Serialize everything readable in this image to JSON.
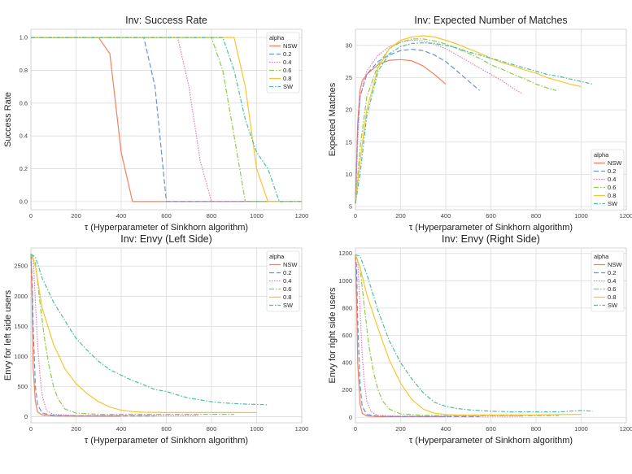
{
  "chart_data": [
    {
      "type": "line",
      "title": "Inv: Success Rate",
      "xlabel": "τ (Hyperparameter of Sinkhorn algorithm)",
      "ylabel": "Success Rate",
      "xlim": [
        0,
        1200
      ],
      "ylim": [
        -0.05,
        1.05
      ],
      "xticks": [
        0,
        200,
        400,
        600,
        800,
        1000,
        1200
      ],
      "yticks": [
        0.0,
        0.2,
        0.4,
        0.6,
        0.8,
        1.0
      ],
      "ytick_labels": [
        "0.0",
        "0.2",
        "0.4",
        "0.6",
        "0.8",
        "1.0"
      ],
      "grid": true,
      "legend": {
        "title": "alpha",
        "position": "top-right"
      },
      "series": [
        {
          "name": "NSW",
          "color": "#f4805d",
          "dash": "solid",
          "x": [
            0,
            300,
            350,
            400,
            450,
            1200
          ],
          "y": [
            1,
            1,
            0.9,
            0.3,
            0,
            0
          ]
        },
        {
          "name": "0.2",
          "color": "#6b8fd6",
          "dash": "6,3",
          "x": [
            0,
            500,
            550,
            600,
            1200
          ],
          "y": [
            1,
            1,
            0.7,
            0,
            0
          ]
        },
        {
          "name": "0.4",
          "color": "#e87ab8",
          "dash": "1.5,1.5",
          "x": [
            0,
            650,
            700,
            750,
            800,
            1200
          ],
          "y": [
            1,
            1,
            0.7,
            0.25,
            0,
            0
          ]
        },
        {
          "name": "0.6",
          "color": "#8fcc4a",
          "dash": "6,2,1.5,2",
          "x": [
            0,
            800,
            850,
            900,
            950,
            1200
          ],
          "y": [
            1,
            1,
            0.8,
            0.4,
            0,
            0
          ]
        },
        {
          "name": "0.8",
          "color": "#f7c531",
          "dash": "solid",
          "x": [
            0,
            900,
            950,
            1000,
            1050,
            1200
          ],
          "y": [
            1,
            1,
            0.7,
            0.2,
            0,
            0
          ]
        },
        {
          "name": "SW",
          "color": "#48bfa4",
          "dash": "5,2,1.5,2",
          "x": [
            0,
            850,
            900,
            950,
            1000,
            1050,
            1100,
            1200
          ],
          "y": [
            1,
            1,
            0.8,
            0.5,
            0.3,
            0.2,
            0,
            0
          ]
        }
      ]
    },
    {
      "type": "line",
      "title": "Inv: Expected Number of Matches",
      "xlabel": "τ (Hyperparameter of Sinkhorn algorithm)",
      "ylabel": "Expected Matches",
      "xlim": [
        0,
        1200
      ],
      "ylim": [
        4.5,
        32.5
      ],
      "xticks": [
        0,
        200,
        400,
        600,
        800,
        1000,
        1200
      ],
      "yticks": [
        5,
        10,
        15,
        20,
        25,
        30
      ],
      "ytick_labels": [
        "5",
        "10",
        "15",
        "20",
        "25",
        "30"
      ],
      "grid": true,
      "legend": {
        "title": "alpha",
        "position": "bottom-right"
      },
      "series": [
        {
          "name": "NSW",
          "color": "#f4805d",
          "dash": "solid",
          "x": [
            0,
            10,
            20,
            30,
            50,
            100,
            150,
            200,
            250,
            300,
            350,
            400
          ],
          "y": [
            5.5,
            18,
            23,
            24.5,
            25.5,
            27,
            27.7,
            27.8,
            27.6,
            26.8,
            25.5,
            24
          ]
        },
        {
          "name": "0.2",
          "color": "#6b8fd6",
          "dash": "6,3",
          "x": [
            0,
            10,
            20,
            50,
            100,
            150,
            200,
            250,
            300,
            350,
            400,
            450,
            500,
            550
          ],
          "y": [
            5.5,
            17,
            22,
            25.5,
            27.5,
            28.5,
            29.2,
            29.4,
            29.2,
            28.5,
            27.5,
            26,
            24.5,
            23
          ]
        },
        {
          "name": "0.4",
          "color": "#e87ab8",
          "dash": "1.5,1.5",
          "x": [
            0,
            10,
            20,
            50,
            100,
            150,
            200,
            250,
            300,
            350,
            400,
            450,
            500,
            550,
            600,
            650,
            700,
            740
          ],
          "y": [
            5.5,
            15,
            22,
            26,
            28.5,
            29.8,
            30.5,
            30.8,
            30.7,
            30.2,
            29.5,
            28.5,
            27.5,
            26.5,
            25.5,
            24.5,
            23.3,
            22.5
          ]
        },
        {
          "name": "0.6",
          "color": "#8fcc4a",
          "dash": "6,2,1.5,2",
          "x": [
            0,
            20,
            50,
            100,
            150,
            200,
            250,
            300,
            350,
            400,
            450,
            500,
            550,
            600,
            650,
            700,
            750,
            800,
            850,
            890
          ],
          "y": [
            5.5,
            14,
            22,
            27,
            29.5,
            30.5,
            31,
            31,
            30.7,
            30.2,
            29.5,
            28.8,
            28,
            27,
            26.3,
            25.5,
            24.8,
            24,
            23.4,
            23
          ]
        },
        {
          "name": "0.8",
          "color": "#f7c531",
          "dash": "solid",
          "x": [
            0,
            20,
            50,
            100,
            150,
            200,
            250,
            300,
            350,
            400,
            450,
            500,
            550,
            600,
            650,
            700,
            750,
            800,
            850,
            900,
            950,
            1000
          ],
          "y": [
            5.5,
            12,
            20,
            26.5,
            29.5,
            30.8,
            31.3,
            31.5,
            31.3,
            30.8,
            30.2,
            29.5,
            28.8,
            28,
            27.3,
            26.8,
            26.2,
            25.7,
            25,
            24.5,
            24,
            23.6
          ]
        },
        {
          "name": "SW",
          "color": "#48bfa4",
          "dash": "5,2,1.5,2",
          "x": [
            0,
            20,
            50,
            100,
            150,
            200,
            250,
            300,
            350,
            400,
            450,
            500,
            550,
            600,
            650,
            700,
            750,
            800,
            850,
            900,
            950,
            1000,
            1050
          ],
          "y": [
            5.5,
            10,
            19,
            26,
            28.7,
            29.8,
            30.3,
            30.4,
            30.3,
            30,
            29.6,
            29,
            28.5,
            28,
            27.5,
            27,
            26.5,
            26,
            25.5,
            25.2,
            24.8,
            24.4,
            24
          ]
        }
      ]
    },
    {
      "type": "line",
      "title": "Inv: Envy (Left Side)",
      "xlabel": "τ (Hyperparameter of Sinkhorn algorithm)",
      "ylabel": "Envy for left side users",
      "xlim": [
        0,
        1200
      ],
      "ylim": [
        -100,
        2800
      ],
      "xticks": [
        0,
        200,
        400,
        600,
        800,
        1000,
        1200
      ],
      "yticks": [
        0,
        500,
        1000,
        1500,
        2000,
        2500
      ],
      "ytick_labels": [
        "0",
        "500",
        "1000",
        "1500",
        "2000",
        "2500"
      ],
      "grid": true,
      "legend": {
        "title": "alpha",
        "position": "top-right"
      },
      "series": [
        {
          "name": "NSW",
          "color": "#f4805d",
          "dash": "solid",
          "x": [
            0,
            5,
            10,
            20,
            30,
            50,
            100,
            200,
            300,
            400
          ],
          "y": [
            2700,
            2000,
            800,
            250,
            80,
            30,
            15,
            10,
            10,
            10
          ]
        },
        {
          "name": "0.2",
          "color": "#6b8fd6",
          "dash": "6,3",
          "x": [
            0,
            5,
            10,
            20,
            30,
            50,
            100,
            200,
            300,
            400,
            500,
            550
          ],
          "y": [
            2700,
            2300,
            1500,
            500,
            200,
            60,
            20,
            15,
            15,
            15,
            15,
            15
          ]
        },
        {
          "name": "0.4",
          "color": "#e87ab8",
          "dash": "1.5,1.5",
          "x": [
            0,
            10,
            20,
            30,
            40,
            50,
            70,
            100,
            200,
            300,
            400,
            500,
            600,
            700,
            740
          ],
          "y": [
            2700,
            2650,
            1900,
            1200,
            700,
            350,
            100,
            40,
            20,
            20,
            20,
            20,
            20,
            20,
            20
          ]
        },
        {
          "name": "0.6",
          "color": "#8fcc4a",
          "dash": "6,2,1.5,2",
          "x": [
            0,
            20,
            40,
            60,
            80,
            100,
            120,
            150,
            200,
            300,
            400,
            500,
            600,
            700,
            800,
            900
          ],
          "y": [
            2700,
            2550,
            1900,
            1300,
            850,
            500,
            300,
            130,
            60,
            40,
            40,
            40,
            40,
            40,
            40,
            40
          ]
        },
        {
          "name": "0.8",
          "color": "#f7c531",
          "dash": "solid",
          "x": [
            0,
            20,
            50,
            100,
            150,
            200,
            250,
            300,
            350,
            400,
            450,
            500,
            600,
            700,
            800,
            900,
            1000
          ],
          "y": [
            2700,
            2500,
            1800,
            1200,
            800,
            550,
            380,
            250,
            160,
            110,
            85,
            75,
            70,
            70,
            70,
            70,
            70
          ]
        },
        {
          "name": "SW",
          "color": "#48bfa4",
          "dash": "5,2,1.5,2",
          "x": [
            0,
            20,
            50,
            100,
            150,
            200,
            250,
            300,
            350,
            400,
            450,
            500,
            550,
            600,
            650,
            700,
            750,
            800,
            850,
            900,
            950,
            1000,
            1050
          ],
          "y": [
            2700,
            2650,
            2300,
            1900,
            1600,
            1300,
            1100,
            920,
            780,
            690,
            600,
            530,
            450,
            420,
            360,
            310,
            280,
            250,
            230,
            220,
            210,
            205,
            200
          ]
        }
      ]
    },
    {
      "type": "line",
      "title": "Inv: Envy (Right Side)",
      "xlabel": "τ (Hyperparameter of Sinkhorn algorithm)",
      "ylabel": "Envy for right side users",
      "xlim": [
        0,
        1200
      ],
      "ylim": [
        -40,
        1240
      ],
      "xticks": [
        0,
        200,
        400,
        600,
        800,
        1000,
        1200
      ],
      "yticks": [
        0,
        200,
        400,
        600,
        800,
        1000,
        1200
      ],
      "ytick_labels": [
        "0",
        "200",
        "400",
        "600",
        "800",
        "1000",
        "1200"
      ],
      "grid": true,
      "legend": {
        "title": "alpha",
        "position": "top-right"
      },
      "series": [
        {
          "name": "NSW",
          "color": "#f4805d",
          "dash": "solid",
          "x": [
            0,
            5,
            10,
            20,
            30,
            50,
            100,
            200,
            300,
            400
          ],
          "y": [
            1190,
            900,
            400,
            100,
            30,
            10,
            5,
            5,
            5,
            5
          ]
        },
        {
          "name": "0.2",
          "color": "#6b8fd6",
          "dash": "6,3",
          "x": [
            0,
            5,
            10,
            20,
            30,
            50,
            100,
            200,
            300,
            400,
            500,
            550
          ],
          "y": [
            1190,
            1100,
            700,
            250,
            80,
            20,
            8,
            5,
            5,
            5,
            5,
            5
          ]
        },
        {
          "name": "0.4",
          "color": "#e87ab8",
          "dash": "1.5,1.5",
          "x": [
            0,
            10,
            20,
            30,
            40,
            50,
            70,
            100,
            200,
            300,
            400,
            500,
            600,
            700,
            740
          ],
          "y": [
            1190,
            1150,
            800,
            450,
            250,
            120,
            40,
            15,
            8,
            8,
            8,
            8,
            8,
            8,
            8
          ]
        },
        {
          "name": "0.6",
          "color": "#8fcc4a",
          "dash": "6,2,1.5,2",
          "x": [
            0,
            20,
            40,
            60,
            80,
            100,
            120,
            150,
            200,
            300,
            400,
            500,
            600,
            700,
            800,
            900
          ],
          "y": [
            1190,
            1100,
            800,
            520,
            330,
            200,
            120,
            60,
            25,
            15,
            12,
            12,
            12,
            12,
            12,
            12
          ]
        },
        {
          "name": "0.8",
          "color": "#f7c531",
          "dash": "solid",
          "x": [
            0,
            20,
            50,
            100,
            150,
            200,
            250,
            300,
            350,
            400,
            450,
            500,
            600,
            700,
            800,
            900,
            1000
          ],
          "y": [
            1190,
            1100,
            900,
            650,
            420,
            250,
            130,
            60,
            30,
            20,
            18,
            18,
            18,
            18,
            18,
            20,
            22
          ]
        },
        {
          "name": "SW",
          "color": "#48bfa4",
          "dash": "5,2,1.5,2",
          "x": [
            0,
            20,
            50,
            100,
            150,
            200,
            250,
            300,
            350,
            400,
            450,
            500,
            550,
            600,
            650,
            700,
            750,
            800,
            850,
            900,
            950,
            1000,
            1050
          ],
          "y": [
            1190,
            1180,
            1050,
            780,
            560,
            400,
            280,
            180,
            110,
            80,
            65,
            55,
            50,
            45,
            42,
            40,
            40,
            40,
            40,
            40,
            45,
            50,
            45
          ]
        }
      ]
    }
  ]
}
